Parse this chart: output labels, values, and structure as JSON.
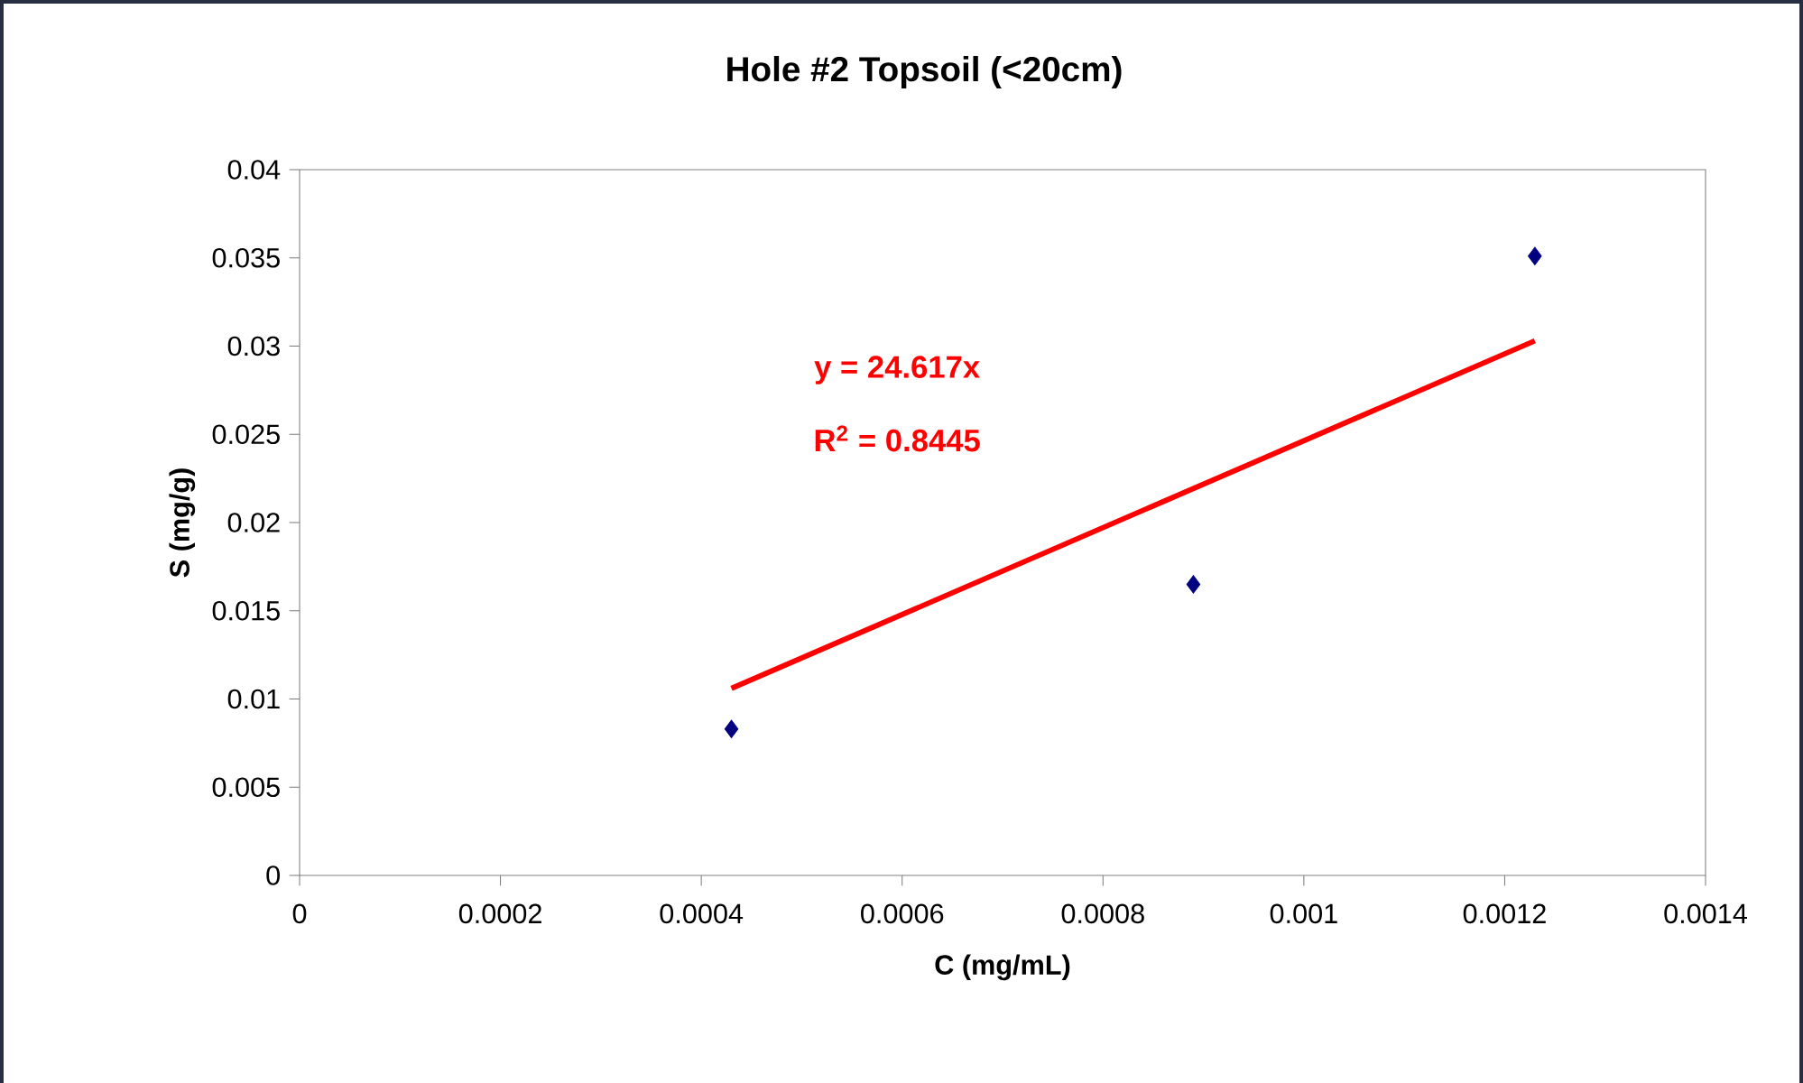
{
  "chart_data": {
    "type": "scatter",
    "title": "Hole #2 Topsoil (<20cm)",
    "xlabel": "C (mg/mL)",
    "ylabel": "S (mg/g)",
    "series": [
      {
        "color": "#000080",
        "marker": "diamond",
        "x": [
          0.00043,
          0.00089,
          0.00123
        ],
        "values": [
          0.0083,
          0.0165,
          0.0351
        ]
      },
      {
        "type": "line",
        "color": "#ff0000",
        "x": [
          0.00043,
          0.00123
        ],
        "values": [
          0.0106,
          0.0303
        ]
      }
    ],
    "annotations": [
      "y = 24.617x",
      "R$^{2}$ = 0.8445"
    ],
    "xlim": [
      0,
      0.0014
    ],
    "xticks": [
      0,
      0.0002,
      0.0004,
      0.0006,
      0.0008,
      0.001,
      0.0012,
      0.0014
    ],
    "ylim": [
      0,
      0.04
    ],
    "yticks": [
      0,
      0.005,
      0.01,
      0.015,
      0.02,
      0.025,
      0.03,
      0.035,
      0.04
    ]
  }
}
